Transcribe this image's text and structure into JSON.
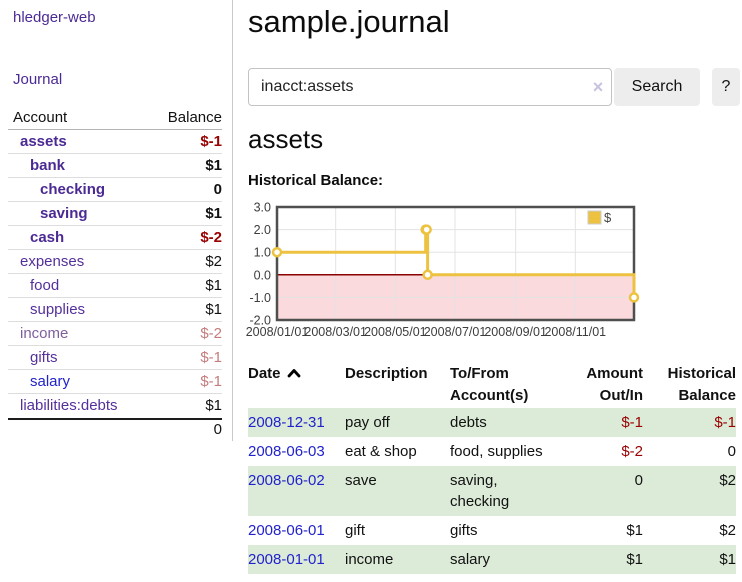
{
  "app": {
    "brand": "hledger-web",
    "nav_journal": "Journal"
  },
  "colors": {
    "purple": "#4b2a94",
    "link_blue": "#2222cc",
    "negative_strong": "#990000",
    "negative_soft": "#c57c7c",
    "row_green": "#dcebd8",
    "series_gold": "#edc240"
  },
  "sidebar": {
    "header": {
      "account": "Account",
      "balance": "Balance"
    },
    "accounts": [
      {
        "name": "assets",
        "level": 1,
        "balance": "$-1",
        "bold": true,
        "name_color": "#4b2a94",
        "balance_color": "#990000"
      },
      {
        "name": "bank",
        "level": 2,
        "balance": "$1",
        "bold": true,
        "name_color": "#4b2a94",
        "balance_color": "#111111"
      },
      {
        "name": "checking",
        "level": 3,
        "balance": "0",
        "bold": true,
        "name_color": "#4b2a94",
        "balance_color": "#111111"
      },
      {
        "name": "saving",
        "level": 3,
        "balance": "$1",
        "bold": true,
        "name_color": "#4b2a94",
        "balance_color": "#111111"
      },
      {
        "name": "cash",
        "level": 2,
        "balance": "$-2",
        "bold": true,
        "name_color": "#4b2a94",
        "balance_color": "#990000"
      },
      {
        "name": "expenses",
        "level": 1,
        "balance": "$2",
        "bold": false,
        "name_color": "#54309b",
        "balance_color": "#111111"
      },
      {
        "name": "food",
        "level": 2,
        "balance": "$1",
        "bold": false,
        "name_color": "#54309b",
        "balance_color": "#111111"
      },
      {
        "name": "supplies",
        "level": 2,
        "balance": "$1",
        "bold": false,
        "name_color": "#54309b",
        "balance_color": "#111111"
      },
      {
        "name": "income",
        "level": 1,
        "balance": "$-2",
        "bold": false,
        "name_color": "#7e5f9e",
        "balance_color": "#c57c7c"
      },
      {
        "name": "gifts",
        "level": 2,
        "balance": "$-1",
        "bold": false,
        "name_color": "#54309b",
        "balance_color": "#c57c7c"
      },
      {
        "name": "salary",
        "level": 2,
        "balance": "$-1",
        "bold": false,
        "name_color": "#2222cc",
        "balance_color": "#c57c7c"
      },
      {
        "name": "liabilities:debts",
        "level": 1,
        "balance": "$1",
        "bold": false,
        "name_color": "#54309b",
        "balance_color": "#111111",
        "last": true
      }
    ],
    "total": "0"
  },
  "main": {
    "title": "sample.journal",
    "search": {
      "value": "inacct:assets",
      "clear_glyph": "×",
      "button_label": "Search",
      "help_label": "?"
    },
    "account_heading": "assets",
    "chart_label": "Historical Balance:"
  },
  "chart_data": {
    "type": "line",
    "title": "Historical Balance",
    "xlabel": "",
    "ylabel": "",
    "xlim": [
      "2008-01-01",
      "2008-12-31"
    ],
    "ylim": [
      -2,
      3
    ],
    "y_ticks": [
      "3.0",
      "2.0",
      "1.0",
      "0.0",
      "-1.0",
      "-2.0"
    ],
    "x_ticks": [
      "2008/01/01",
      "2008/03/01",
      "2008/05/01",
      "2008/07/01",
      "2008/09/01",
      "2008/11/01"
    ],
    "grid": true,
    "legend_position": "top-right",
    "negative_region_color": "#fadadc",
    "zero_line_color": "#8b0000",
    "series": [
      {
        "name": "$",
        "color": "#edc240",
        "steps": true,
        "points": [
          [
            "2008-01-01",
            1
          ],
          [
            "2008-06-01",
            2
          ],
          [
            "2008-06-02",
            2
          ],
          [
            "2008-06-03",
            0
          ],
          [
            "2008-12-31",
            -1
          ]
        ]
      }
    ]
  },
  "register_table": {
    "headers": [
      "Date",
      "Description",
      "To/From Account(s)",
      "Amount Out/In",
      "Historical Balance"
    ],
    "sort": {
      "column": "Date",
      "direction": "ascending"
    },
    "rows": [
      {
        "date": "2008-12-31",
        "description": "pay off",
        "accounts": "debts",
        "amount": "$-1",
        "balance": "$-1"
      },
      {
        "date": "2008-06-03",
        "description": "eat & shop",
        "accounts": "food, supplies",
        "amount": "$-2",
        "balance": "0"
      },
      {
        "date": "2008-06-02",
        "description": "save",
        "accounts": "saving, checking",
        "amount": "0",
        "balance": "$2"
      },
      {
        "date": "2008-06-01",
        "description": "gift",
        "accounts": "gifts",
        "amount": "$1",
        "balance": "$2"
      },
      {
        "date": "2008-01-01",
        "description": "income",
        "accounts": "salary",
        "amount": "$1",
        "balance": "$1"
      }
    ]
  }
}
